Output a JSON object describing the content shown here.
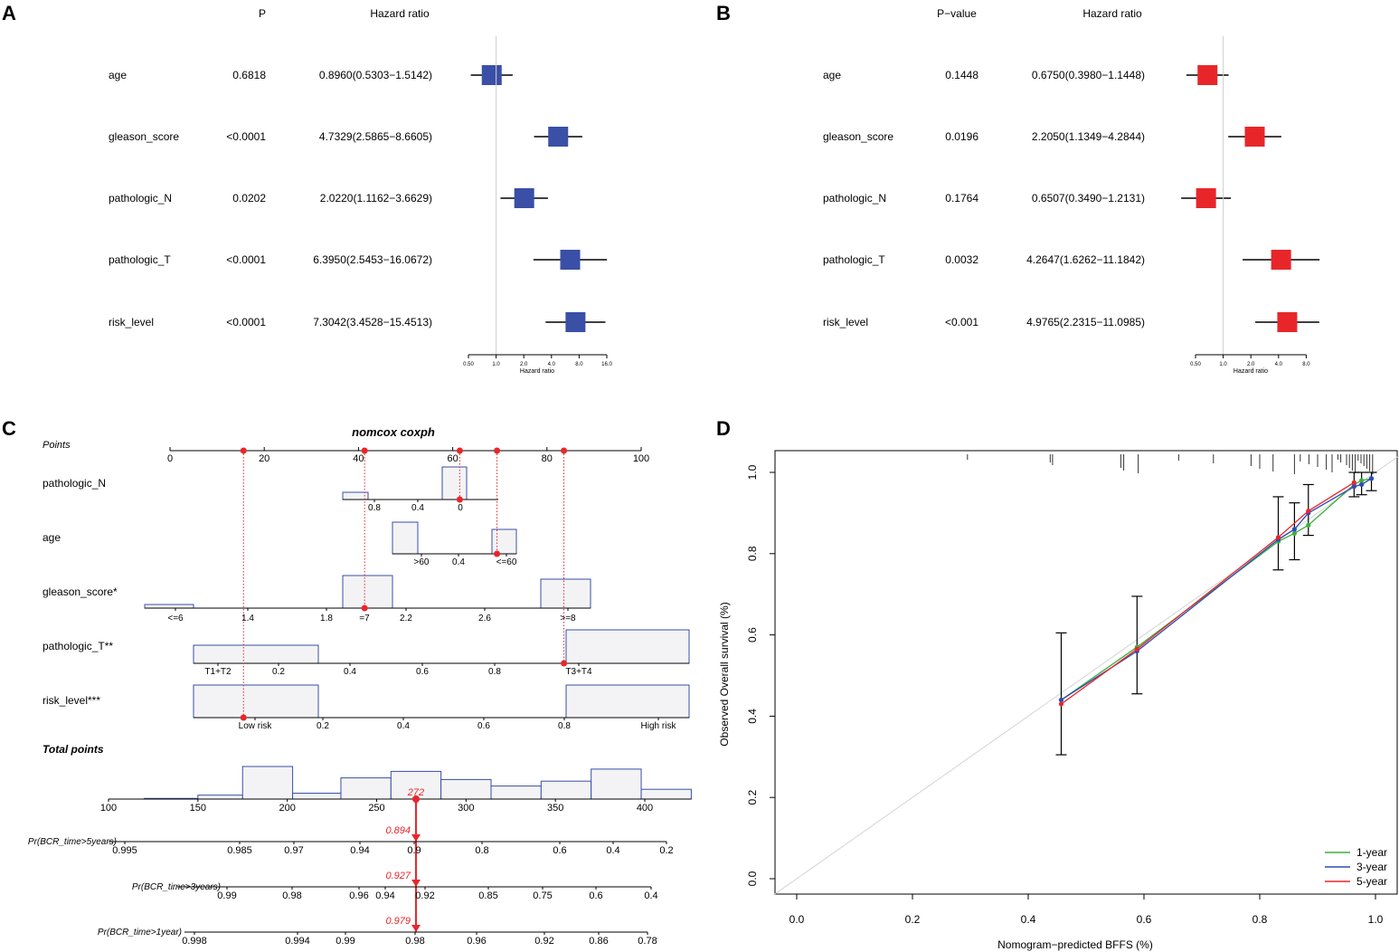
{
  "chart_data": [
    {
      "panel": "A",
      "type": "forest",
      "headers": {
        "p": "P",
        "hr": "Hazard ratio"
      },
      "rows": [
        {
          "name": "age",
          "p": "0.6818",
          "hr_text": "0.8960(0.5303−1.5142)",
          "hr": 0.896,
          "lo": 0.5303,
          "hi": 1.5142
        },
        {
          "name": "gleason_score",
          "p": "<0.0001",
          "hr_text": "4.7329(2.5865−8.6605)",
          "hr": 4.7329,
          "lo": 2.5865,
          "hi": 8.6605
        },
        {
          "name": "pathologic_N",
          "p": "0.0202",
          "hr_text": "2.0220(1.1162−3.6629)",
          "hr": 2.022,
          "lo": 1.1162,
          "hi": 3.6629
        },
        {
          "name": "pathologic_T",
          "p": "<0.0001",
          "hr_text": "6.3950(2.5453−16.0672)",
          "hr": 6.395,
          "lo": 2.5453,
          "hi": 16.0672
        },
        {
          "name": "risk_level",
          "p": "<0.0001",
          "hr_text": "7.3042(3.4528−15.4513)",
          "hr": 7.3042,
          "lo": 3.4528,
          "hi": 15.4513
        }
      ],
      "axis": {
        "ticks": [
          "0.50",
          "1.0",
          "2.0",
          "4.0",
          "8.0",
          "16.0"
        ],
        "tick_values": [
          0.5,
          1,
          2,
          4,
          8,
          16
        ],
        "label": "Hazard ratio",
        "reference": 1
      },
      "box_color": "#3a4fa6"
    },
    {
      "panel": "B",
      "type": "forest",
      "headers": {
        "p": "P−value",
        "hr": "Hazard ratio"
      },
      "rows": [
        {
          "name": "age",
          "p": "0.1448",
          "hr_text": "0.6750(0.3980−1.1448)",
          "hr": 0.675,
          "lo": 0.398,
          "hi": 1.1448
        },
        {
          "name": "gleason_score",
          "p": "0.0196",
          "hr_text": "2.2050(1.1349−4.2844)",
          "hr": 2.205,
          "lo": 1.1349,
          "hi": 4.2844
        },
        {
          "name": "pathologic_N",
          "p": "0.1764",
          "hr_text": "0.6507(0.3490−1.2131)",
          "hr": 0.6507,
          "lo": 0.349,
          "hi": 1.2131
        },
        {
          "name": "pathologic_T",
          "p": "0.0032",
          "hr_text": "4.2647(1.6262−11.1842)",
          "hr": 4.2647,
          "lo": 1.6262,
          "hi": 11.1842
        },
        {
          "name": "risk_level",
          "p": "<0.001",
          "hr_text": "4.9765(2.2315−11.0985)",
          "hr": 4.9765,
          "lo": 2.2315,
          "hi": 11.0985
        }
      ],
      "axis": {
        "ticks": [
          "0.50",
          "1.0",
          "2.0",
          "4.0",
          "8.0"
        ],
        "tick_values": [
          0.5,
          1,
          2,
          4,
          8
        ],
        "label": "Hazard ratio",
        "reference": 1
      },
      "box_color": "#e8262a"
    },
    {
      "panel": "C",
      "type": "nomogram",
      "title": "nomcox coxph",
      "points_label": "Points",
      "points_ticks": [
        0,
        20,
        40,
        60,
        80,
        100
      ],
      "variables": [
        {
          "name": "pathologic_N",
          "ticks": [
            "0.8",
            "0.4",
            "0"
          ],
          "selected": "0",
          "selected_points": 61.5
        },
        {
          "name": "age",
          "ticks": [
            ">60",
            "0.4",
            "<=60"
          ],
          "selected": "<=60",
          "selected_points": 69.4
        },
        {
          "name": "gleason_score*",
          "ticks": [
            "<=6",
            "1.4",
            "1.8",
            "=7",
            "2.2",
            "2.6",
            ">=8"
          ],
          "selected": "=7",
          "selected_points": 41.3
        },
        {
          "name": "pathologic_T**",
          "ticks": [
            "T1+T2",
            "0.2",
            "0.4",
            "0.6",
            "0.8",
            "T3+T4"
          ],
          "selected": "T3+T4",
          "selected_points": 83.6
        },
        {
          "name": "risk_level***",
          "ticks": [
            "Low risk",
            "0.2",
            "0.4",
            "0.6",
            "0.8",
            "High risk"
          ],
          "selected": "Low risk",
          "selected_points": 15.6
        }
      ],
      "total_label": "Total points",
      "total_ticks": [
        100,
        150,
        200,
        250,
        300,
        350,
        400
      ],
      "total_value": 272,
      "total_value_label": "272",
      "total_histogram": [
        {
          "from": 120,
          "to": 150,
          "freq": 0.02
        },
        {
          "from": 150,
          "to": 175,
          "freq": 0.12
        },
        {
          "from": 175,
          "to": 203,
          "freq": 1.0
        },
        {
          "from": 203,
          "to": 230,
          "freq": 0.18
        },
        {
          "from": 230,
          "to": 258,
          "freq": 0.65
        },
        {
          "from": 258,
          "to": 286,
          "freq": 0.85
        },
        {
          "from": 286,
          "to": 314,
          "freq": 0.6
        },
        {
          "from": 314,
          "to": 342,
          "freq": 0.4
        },
        {
          "from": 342,
          "to": 370,
          "freq": 0.55
        },
        {
          "from": 370,
          "to": 398,
          "freq": 0.92
        },
        {
          "from": 398,
          "to": 426,
          "freq": 0.3
        }
      ],
      "outcomes": [
        {
          "label": "Pr(BCR_time>5years)",
          "ticks": [
            "0.995",
            "0.985",
            "0.97",
            "0.94",
            "0.9",
            "0.8",
            "0.6",
            "0.4",
            "0.2"
          ],
          "value_label": "0.894",
          "value": 0.894
        },
        {
          "label": "Pr(BCR_time>3years)",
          "ticks": [
            "0.99",
            "0.98",
            "0.96",
            "0.94",
            "0.92",
            "0.85",
            "0.75",
            "0.6",
            "0.4"
          ],
          "value_label": "0.927",
          "value": 0.927
        },
        {
          "label": "Pr(BCR_time>1year)",
          "ticks": [
            "0.998",
            "0.994",
            "0.99",
            "0.98",
            "0.96",
            "0.92",
            "0.86",
            "0.78"
          ],
          "value_label": "0.979",
          "value": 0.979
        }
      ]
    },
    {
      "panel": "D",
      "type": "calibration",
      "xlabel": "Nomogram−predicted BFFS (%)",
      "ylabel": "Observed Overall survival (%)",
      "xlim": [
        -0.04,
        1.04
      ],
      "ylim": [
        -0.04,
        1.04
      ],
      "x_ticks": [
        "0.0",
        "0.2",
        "0.4",
        "0.6",
        "0.8",
        "1.0"
      ],
      "y_ticks": [
        "0.0",
        "0.2",
        "0.4",
        "0.6",
        "0.8",
        "1.0"
      ],
      "series": [
        {
          "name": "1-year",
          "color": "#3cb13c",
          "x": [
            0.457,
            0.588,
            0.832,
            0.86,
            0.884,
            0.963,
            0.976,
            0.993
          ],
          "y": [
            0.44,
            0.57,
            0.83,
            0.85,
            0.87,
            0.97,
            0.98,
            0.985
          ]
        },
        {
          "name": "3-year",
          "color": "#2e4bb8",
          "x": [
            0.457,
            0.588,
            0.832,
            0.86,
            0.884,
            0.963,
            0.976,
            0.993
          ],
          "y": [
            0.44,
            0.56,
            0.835,
            0.86,
            0.9,
            0.965,
            0.97,
            0.985
          ]
        },
        {
          "name": "5-year",
          "color": "#e8262a",
          "x": [
            0.457,
            0.588,
            0.832,
            0.884,
            0.963
          ],
          "y": [
            0.43,
            0.565,
            0.84,
            0.905,
            0.975
          ]
        }
      ],
      "error_bars": [
        {
          "x": 0.457,
          "y": 0.43,
          "lo": 0.305,
          "hi": 0.605
        },
        {
          "x": 0.588,
          "y": 0.565,
          "lo": 0.455,
          "hi": 0.695
        },
        {
          "x": 0.832,
          "y": 0.84,
          "lo": 0.76,
          "hi": 0.94
        },
        {
          "x": 0.86,
          "y": 0.85,
          "lo": 0.785,
          "hi": 0.925
        },
        {
          "x": 0.884,
          "y": 0.905,
          "lo": 0.845,
          "hi": 0.97
        },
        {
          "x": 0.963,
          "y": 0.975,
          "lo": 0.94,
          "hi": 1.0
        },
        {
          "x": 0.976,
          "y": 0.97,
          "lo": 0.945,
          "hi": 1.0
        },
        {
          "x": 0.993,
          "y": 0.985,
          "lo": 0.955,
          "hi": 1.0
        }
      ],
      "rug": [
        0.295,
        0.438,
        0.442,
        0.56,
        0.565,
        0.59,
        0.66,
        0.72,
        0.785,
        0.8,
        0.823,
        0.86,
        0.87,
        0.885,
        0.9,
        0.915,
        0.925,
        0.935,
        0.94,
        0.95,
        0.955,
        0.96,
        0.965,
        0.97,
        0.975,
        0.98,
        0.985,
        0.99,
        0.995
      ],
      "legend": [
        "1-year",
        "3-year",
        "5-year"
      ]
    }
  ],
  "panel_labels": [
    "A",
    "B",
    "C",
    "D"
  ]
}
